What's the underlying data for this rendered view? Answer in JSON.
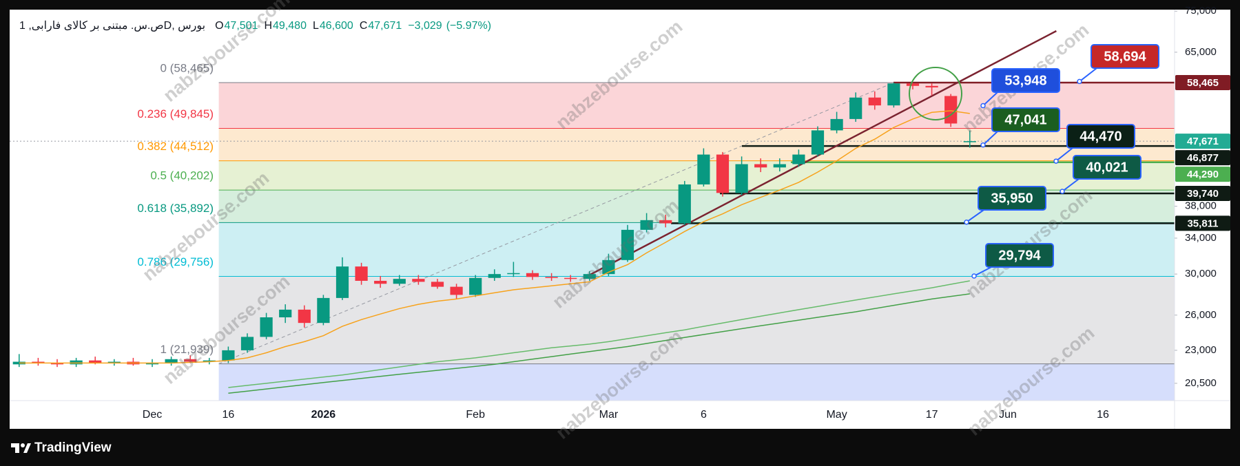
{
  "header": {
    "symbol": "ص.س. مبتنی بر کالای فارابی, 1D, بورس",
    "ohlc": [
      {
        "label": "O",
        "value": 47501,
        "value_label": "47,501"
      },
      {
        "label": "H",
        "value": 49480,
        "value_label": "49,480"
      },
      {
        "label": "L",
        "value": 46600,
        "value_label": "46,600"
      },
      {
        "label": "C",
        "value": 47671,
        "value_label": "47,671"
      }
    ],
    "change": {
      "value": -3029,
      "label": "−3,029"
    },
    "change_pct": {
      "value": -5.97,
      "label": "(−5.97%)"
    },
    "value_color": "#089981"
  },
  "chart_data": {
    "type": "candlestick",
    "categories": [
      null,
      null,
      null,
      null,
      null,
      null,
      null,
      "Dec",
      null,
      null,
      null,
      "16",
      null,
      null,
      null,
      null,
      "2026",
      null,
      null,
      null,
      null,
      null,
      null,
      null,
      "Feb",
      null,
      null,
      null,
      null,
      null,
      null,
      "Mar",
      null,
      null,
      null,
      null,
      "6",
      null,
      null,
      null,
      null,
      null,
      null,
      "May",
      null,
      null,
      null,
      null,
      "17",
      null,
      null,
      null,
      "Jun",
      null,
      null,
      null,
      null,
      "16",
      null,
      null,
      null
    ],
    "open": [
      21900,
      22100,
      22000,
      21900,
      22200,
      22000,
      22100,
      21900,
      22000,
      22300,
      22100,
      22200,
      23000,
      24100,
      25800,
      26500,
      25300,
      27600,
      30800,
      29300,
      29000,
      29500,
      29200,
      28700,
      27900,
      29600,
      30000,
      30100,
      29700,
      29600,
      29500,
      30000,
      31500,
      35000,
      36200,
      35800,
      41000,
      45500,
      39800,
      44000,
      43500,
      44000,
      45500,
      49500,
      51500,
      55500,
      54000,
      58300,
      57800,
      55800,
      47501,
      null,
      null,
      null,
      null,
      null,
      null,
      null,
      null,
      null,
      null
    ],
    "high": [
      22700,
      22400,
      22300,
      22400,
      22500,
      22300,
      22400,
      22300,
      22500,
      22600,
      22400,
      23300,
      24400,
      26200,
      27000,
      26900,
      27900,
      31800,
      31200,
      29800,
      29900,
      29900,
      29500,
      29000,
      29900,
      30500,
      31300,
      30400,
      30100,
      29900,
      30300,
      32200,
      35600,
      37100,
      36900,
      41500,
      46500,
      45900,
      45200,
      44900,
      44900,
      46300,
      50200,
      52800,
      56500,
      56700,
      58465,
      58400,
      58300,
      56200,
      49480,
      null,
      null,
      null,
      null,
      null,
      null,
      null,
      null,
      null,
      null
    ],
    "low": [
      21700,
      21800,
      21700,
      21700,
      21900,
      21800,
      21800,
      21700,
      21800,
      22000,
      21900,
      22000,
      22800,
      23900,
      25300,
      24900,
      25100,
      27400,
      28900,
      28600,
      28800,
      28900,
      28500,
      27500,
      27700,
      29300,
      29700,
      29400,
      29300,
      29200,
      29300,
      29800,
      31300,
      34700,
      35300,
      35600,
      40700,
      39300,
      39500,
      42800,
      42900,
      43600,
      45200,
      49000,
      51000,
      53200,
      53600,
      57100,
      55900,
      50100,
      46600,
      null,
      null,
      null,
      null,
      null,
      null,
      null,
      null,
      null,
      null
    ],
    "close": [
      22100,
      22000,
      21900,
      22200,
      22000,
      22100,
      21900,
      22000,
      22300,
      22100,
      22200,
      23000,
      24100,
      25800,
      26500,
      25300,
      27600,
      30800,
      29300,
      29000,
      29500,
      29200,
      28700,
      27900,
      29600,
      30000,
      30100,
      29700,
      29600,
      29500,
      30000,
      31500,
      35000,
      36200,
      35800,
      41000,
      45500,
      39800,
      44000,
      43500,
      44000,
      45500,
      49500,
      51500,
      55500,
      54000,
      58300,
      57800,
      57500,
      50700,
      47671,
      null,
      null,
      null,
      null,
      null,
      null,
      null,
      null,
      null,
      null
    ],
    "up_color": "#089981",
    "down_color": "#f23645",
    "ylim": [
      19300,
      75400
    ],
    "log_scale": true,
    "yticks": [
      {
        "value": 75000,
        "label": "75,000"
      },
      {
        "value": 65000,
        "label": "65,000"
      },
      {
        "value": 38000,
        "label": "38,000"
      },
      {
        "value": 34000,
        "label": "34,000"
      },
      {
        "value": 30000,
        "label": "30,000"
      },
      {
        "value": 26000,
        "label": "26,000"
      },
      {
        "value": 23000,
        "label": "23,000"
      },
      {
        "value": 20500,
        "label": "20,500"
      }
    ],
    "moving_averages": [
      {
        "color": "#66bb6a",
        "values": [
          null,
          null,
          null,
          null,
          null,
          null,
          null,
          null,
          null,
          null,
          null,
          20200,
          20350,
          20500,
          20650,
          20800,
          20950,
          21100,
          21300,
          21500,
          21700,
          21900,
          22100,
          22250,
          22400,
          22600,
          22800,
          23000,
          23200,
          23350,
          23500,
          23700,
          23950,
          24200,
          24450,
          24700,
          25000,
          25300,
          25600,
          25900,
          26200,
          26500,
          26800,
          27100,
          27400,
          27700,
          28000,
          28300,
          28600,
          28950,
          29300,
          null,
          null,
          null,
          null,
          null,
          null,
          null,
          null,
          null,
          null
        ]
      },
      {
        "color": "#43a047",
        "values": [
          null,
          null,
          null,
          null,
          null,
          null,
          null,
          null,
          null,
          null,
          null,
          19800,
          19950,
          20100,
          20250,
          20400,
          20550,
          20700,
          20850,
          21000,
          21150,
          21300,
          21450,
          21600,
          21750,
          21900,
          22100,
          22300,
          22500,
          22700,
          22900,
          23100,
          23300,
          23550,
          23800,
          24050,
          24300,
          24550,
          24800,
          25050,
          25300,
          25550,
          25800,
          26050,
          26300,
          26600,
          26900,
          27200,
          27500,
          27750,
          28000,
          null,
          null,
          null,
          null,
          null,
          null,
          null,
          null,
          null,
          null
        ]
      },
      {
        "color": "#f7a21b",
        "values": [
          22000,
          22000,
          22000,
          22000,
          22000,
          22000,
          22000,
          22000,
          22000,
          22050,
          22100,
          22200,
          22400,
          22800,
          23300,
          23700,
          24200,
          25000,
          25600,
          26100,
          26600,
          27000,
          27300,
          27500,
          27800,
          28100,
          28400,
          28600,
          28800,
          29000,
          29200,
          30200,
          31000,
          32300,
          33500,
          34800,
          36000,
          37000,
          38200,
          39200,
          40200,
          41300,
          42800,
          44500,
          46500,
          48000,
          50000,
          51500,
          52700,
          53000,
          52500,
          null,
          null,
          null,
          null,
          null,
          null,
          null,
          null,
          null,
          null
        ]
      }
    ],
    "fib_levels": [
      {
        "ratio": 0,
        "price": 58465,
        "label": "0 (58,465)",
        "color": "#787b86",
        "fill": "#fbd5d8"
      },
      {
        "ratio": 0.236,
        "price": 49845,
        "label": "0.236 (49,845)",
        "color": "#f23645",
        "fill": "#fde9cf"
      },
      {
        "ratio": 0.382,
        "price": 44512,
        "label": "0.382 (44,512)",
        "color": "#ff9800",
        "fill": "#e6f1d3"
      },
      {
        "ratio": 0.5,
        "price": 40202,
        "label": "0.5 (40,202)",
        "color": "#4caf50",
        "fill": "#d6eedd"
      },
      {
        "ratio": 0.618,
        "price": 35892,
        "label": "0.618 (35,892)",
        "color": "#089981",
        "fill": "#cdeff3"
      },
      {
        "ratio": 0.786,
        "price": 29756,
        "label": "0.786 (29,756)",
        "color": "#00bcd4",
        "fill": "#e5e5e7"
      },
      {
        "ratio": 1,
        "price": 21939,
        "label": "1 (21,939)",
        "color": "#787b86",
        "fill": "#d6defc"
      }
    ],
    "trend_line": {
      "color": "#7b2330",
      "values": [
        29700,
        70000
      ]
    },
    "price_labels": [
      {
        "value": 58465,
        "label": "58,465",
        "color": "#801c24"
      },
      {
        "value": 47671,
        "label": "47,671",
        "color": "#22ab94"
      },
      {
        "value": 46877,
        "label": "46,877",
        "color": "#0f1b14"
      },
      {
        "value": 44290,
        "label": "44,290",
        "color": "#4caf50"
      },
      {
        "value": 39740,
        "label": "39,740",
        "color": "#0f1b14"
      },
      {
        "value": 35811,
        "label": "35,811",
        "color": "#0f1b14"
      }
    ],
    "callouts": [
      {
        "value": 58694,
        "label": "58,694",
        "color": "#c62828"
      },
      {
        "value": 53948,
        "label": "53,948",
        "color": "#1f4fdc"
      },
      {
        "value": 47041,
        "label": "47,041",
        "color": "#1b5e20"
      },
      {
        "value": 44470,
        "label": "44,470",
        "color": "#0b2016"
      },
      {
        "value": 40021,
        "label": "40,021",
        "color": "#0e5a45"
      },
      {
        "value": 35950,
        "label": "35,950",
        "color": "#0e5a45"
      },
      {
        "value": 29794,
        "label": "29,794",
        "color": "#0e5a45"
      }
    ],
    "watermark": "nabzebourse.com"
  },
  "footer": {
    "brand": "TradingView"
  }
}
